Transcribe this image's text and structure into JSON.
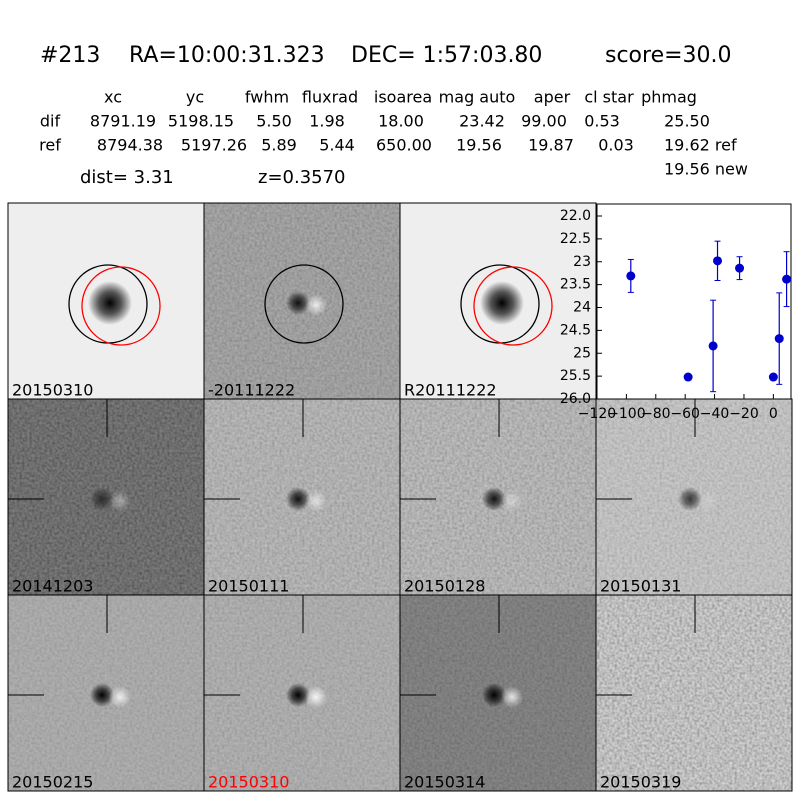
{
  "header": {
    "id": "#213",
    "ra": "RA=10:00:31.323",
    "dec": "DEC= 1:57:03.80",
    "score": "score=30.0"
  },
  "table": {
    "columns": [
      "xc",
      "yc",
      "fwhm",
      "fluxrad",
      "isoarea",
      "mag auto",
      "aper",
      "cl star",
      "phmag"
    ],
    "rows": [
      [
        "dif",
        "8791.19",
        "5198.15",
        "5.50",
        "1.98",
        "18.00",
        "23.42",
        "99.00",
        "0.53",
        "25.50"
      ],
      [
        "ref",
        "8794.38",
        "5197.26",
        "5.89",
        "5.44",
        "650.00",
        "19.56",
        "19.87",
        "0.03",
        "19.62 ref"
      ]
    ],
    "extra": "19.56 new"
  },
  "dist": "dist=  3.31",
  "z": "z=0.3570",
  "panels": [
    {
      "label": "20150310"
    },
    {
      "label": "-20111222"
    },
    {
      "label": "R20111222"
    },
    {
      "label": "20141203"
    },
    {
      "label": "20150111"
    },
    {
      "label": "20150128"
    },
    {
      "label": "20150131"
    },
    {
      "label": "20150215"
    },
    {
      "label": "20150310",
      "label_color": "#ff0000"
    },
    {
      "label": "20150314"
    },
    {
      "label": "20150319"
    }
  ],
  "chart_data": {
    "type": "errorbar",
    "x": [
      -97,
      -58,
      -41,
      -38,
      -23,
      0,
      4,
      9
    ],
    "series": [
      {
        "color": "#0000cc",
        "values": [
          23.31,
          25.52,
          24.84,
          22.98,
          23.14,
          25.52,
          24.68,
          23.38
        ],
        "errors": [
          0.36,
          0.05,
          1.0,
          0.43,
          0.25,
          0.05,
          1.0,
          0.6
        ]
      }
    ],
    "xlim": [
      -120,
      12
    ],
    "ylim": [
      26.0,
      22.0
    ],
    "xticks": [
      {
        "value": -120,
        "label": "−120"
      },
      {
        "value": -100,
        "label": "−100"
      },
      {
        "value": -80,
        "label": "−80"
      },
      {
        "value": -60,
        "label": "−60"
      },
      {
        "value": -40,
        "label": "−40"
      },
      {
        "value": -20,
        "label": "−20"
      },
      0
    ],
    "yticks": [
      {
        "value": 22,
        "label": "22.0"
      },
      22.5,
      23,
      23.5,
      24,
      24.5,
      25,
      25.5,
      {
        "value": 26,
        "label": "26.0"
      }
    ],
    "yticks_labels_note_removed": null
  }
}
